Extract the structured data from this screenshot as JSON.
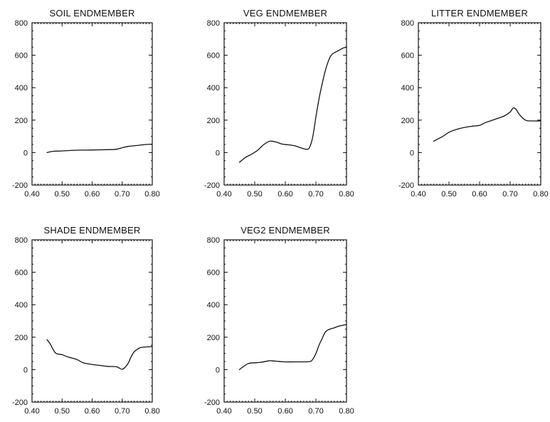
{
  "chart_data": [
    {
      "type": "line",
      "title": "SOIL ENDMEMBER",
      "xlim": [
        0.4,
        0.8
      ],
      "ylim": [
        -200,
        800
      ],
      "xticks": [
        "0.40",
        "0.50",
        "0.60",
        "0.70",
        "0.80"
      ],
      "yticks": [
        "800",
        "600",
        "400",
        "200",
        "0",
        "-200"
      ],
      "x": [
        0.45,
        0.47,
        0.5,
        0.55,
        0.6,
        0.65,
        0.68,
        0.7,
        0.72,
        0.75,
        0.78,
        0.8
      ],
      "y": [
        0,
        8,
        10,
        15,
        16,
        18,
        20,
        30,
        38,
        44,
        50,
        52
      ]
    },
    {
      "type": "line",
      "title": "VEG ENDMEMBER",
      "xlim": [
        0.4,
        0.8
      ],
      "ylim": [
        -200,
        800
      ],
      "xticks": [
        "0.40",
        "0.50",
        "0.60",
        "0.70",
        "0.80"
      ],
      "yticks": [
        "800",
        "600",
        "400",
        "200",
        "0",
        "-200"
      ],
      "x": [
        0.45,
        0.47,
        0.49,
        0.51,
        0.53,
        0.55,
        0.57,
        0.59,
        0.61,
        0.63,
        0.65,
        0.67,
        0.68,
        0.69,
        0.7,
        0.71,
        0.72,
        0.73,
        0.74,
        0.75,
        0.76,
        0.77,
        0.78,
        0.79,
        0.8
      ],
      "y": [
        -60,
        -30,
        -10,
        15,
        50,
        70,
        65,
        52,
        48,
        42,
        30,
        20,
        35,
        100,
        220,
        330,
        420,
        500,
        560,
        600,
        615,
        625,
        635,
        645,
        650
      ]
    },
    {
      "type": "line",
      "title": "LITTER ENDMEMBER",
      "xlim": [
        0.4,
        0.8
      ],
      "ylim": [
        -200,
        800
      ],
      "xticks": [
        "0.40",
        "0.50",
        "0.60",
        "0.70",
        "0.80"
      ],
      "yticks": [
        "800",
        "600",
        "400",
        "200",
        "0",
        "-200"
      ],
      "x": [
        0.45,
        0.48,
        0.5,
        0.52,
        0.55,
        0.58,
        0.6,
        0.62,
        0.65,
        0.68,
        0.7,
        0.71,
        0.72,
        0.73,
        0.75,
        0.77,
        0.8
      ],
      "y": [
        70,
        100,
        125,
        140,
        155,
        163,
        168,
        185,
        205,
        225,
        250,
        275,
        265,
        235,
        200,
        195,
        195
      ]
    },
    {
      "type": "line",
      "title": "SHADE ENDMEMBER",
      "xlim": [
        0.4,
        0.8
      ],
      "ylim": [
        -200,
        800
      ],
      "xticks": [
        "0.40",
        "0.50",
        "0.60",
        "0.70",
        "0.80"
      ],
      "yticks": [
        "800",
        "600",
        "400",
        "200",
        "0",
        "-200"
      ],
      "x": [
        0.45,
        0.46,
        0.47,
        0.48,
        0.5,
        0.52,
        0.55,
        0.57,
        0.6,
        0.63,
        0.65,
        0.68,
        0.69,
        0.7,
        0.71,
        0.72,
        0.73,
        0.74,
        0.75,
        0.76,
        0.78,
        0.8
      ],
      "y": [
        185,
        160,
        125,
        100,
        92,
        78,
        62,
        42,
        32,
        25,
        20,
        18,
        10,
        2,
        15,
        40,
        80,
        110,
        125,
        135,
        140,
        142
      ]
    },
    {
      "type": "line",
      "title": "VEG2 ENDMEMBER",
      "xlim": [
        0.4,
        0.8
      ],
      "ylim": [
        -200,
        800
      ],
      "xticks": [
        "0.40",
        "0.50",
        "0.60",
        "0.70",
        "0.80"
      ],
      "yticks": [
        "800",
        "600",
        "400",
        "200",
        "0",
        "-200"
      ],
      "x": [
        0.45,
        0.46,
        0.48,
        0.5,
        0.52,
        0.54,
        0.55,
        0.57,
        0.6,
        0.65,
        0.68,
        0.69,
        0.7,
        0.71,
        0.72,
        0.73,
        0.74,
        0.75,
        0.76,
        0.77,
        0.78,
        0.8
      ],
      "y": [
        0,
        15,
        38,
        42,
        45,
        52,
        55,
        52,
        48,
        48,
        50,
        65,
        100,
        150,
        190,
        230,
        245,
        252,
        258,
        265,
        270,
        278
      ]
    }
  ]
}
